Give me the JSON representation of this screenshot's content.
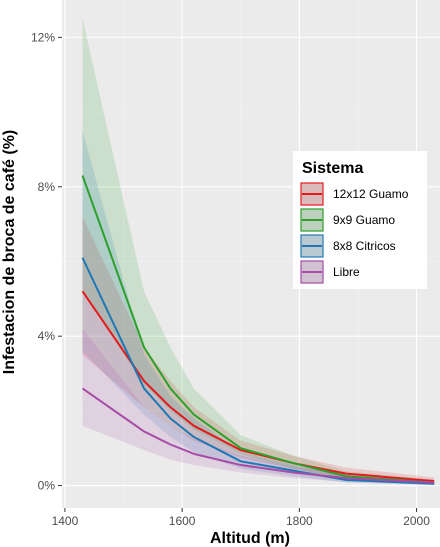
{
  "chart_data": {
    "type": "line",
    "xlabel": "Altitud (m)",
    "ylabel": "Infestacion de broca de café (%)",
    "xlim": [
      1395,
      2040
    ],
    "ylim": [
      -0.6,
      13.0
    ],
    "x_ticks": [
      1400,
      1600,
      1800,
      2000
    ],
    "x_tick_labels": [
      "1400",
      "1600",
      "1800",
      "2000"
    ],
    "y_ticks": [
      0,
      4,
      8,
      12
    ],
    "y_tick_labels": [
      "0%",
      "4%",
      "8%",
      "12%"
    ],
    "grid": true,
    "legend": {
      "title": "Sistema",
      "position": "right"
    },
    "x": [
      1430,
      1535,
      1580,
      1620,
      1700,
      1790,
      1880,
      2030
    ],
    "series": [
      {
        "name": "12x12 Guamo",
        "color": "#E41A1C",
        "values": [
          5.2,
          2.8,
          2.1,
          1.6,
          0.95,
          0.6,
          0.32,
          0.12
        ],
        "lower": [
          3.5,
          2.1,
          1.6,
          1.2,
          0.75,
          0.45,
          0.2,
          0.04
        ],
        "upper": [
          7.2,
          3.7,
          2.8,
          2.1,
          1.2,
          0.8,
          0.48,
          0.22
        ]
      },
      {
        "name": "9x9 Guamo",
        "color": "#2CA02C",
        "values": [
          8.3,
          3.7,
          2.6,
          1.9,
          1.0,
          0.6,
          0.25,
          0.08
        ],
        "lower": [
          5.2,
          2.7,
          2.0,
          1.5,
          0.85,
          0.45,
          0.15,
          0.03
        ],
        "upper": [
          12.5,
          5.2,
          3.7,
          2.6,
          1.35,
          0.8,
          0.38,
          0.16
        ]
      },
      {
        "name": "8x8 Citricos",
        "color": "#1F77B4",
        "values": [
          6.1,
          2.6,
          1.8,
          1.3,
          0.65,
          0.4,
          0.15,
          0.05
        ],
        "lower": [
          3.6,
          1.9,
          1.3,
          0.9,
          0.45,
          0.25,
          0.08,
          0.01
        ],
        "upper": [
          9.5,
          3.5,
          2.4,
          1.8,
          0.9,
          0.55,
          0.25,
          0.1
        ]
      },
      {
        "name": "Libre",
        "color": "#A64CA6",
        "values": [
          2.6,
          1.45,
          1.1,
          0.85,
          0.55,
          0.35,
          0.2,
          0.08
        ],
        "lower": [
          1.6,
          0.95,
          0.7,
          0.55,
          0.35,
          0.2,
          0.1,
          0.02
        ],
        "upper": [
          4.2,
          2.1,
          1.6,
          1.25,
          0.8,
          0.5,
          0.32,
          0.16
        ]
      }
    ]
  }
}
